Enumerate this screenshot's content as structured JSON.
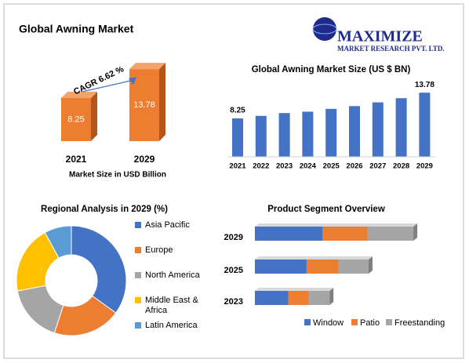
{
  "header": {
    "title": "Global Awning Market",
    "logo_name": "MAXIMIZE",
    "logo_tagline": "MARKET RESEARCH PVT. LTD."
  },
  "chart_data": [
    {
      "type": "bar3d",
      "categories": [
        "2021",
        "2029"
      ],
      "values": [
        8.25,
        13.78
      ],
      "color": "#ed7d31",
      "annotation": "CAGR 6.62 %",
      "xlabel": "Market Size in USD Billion",
      "ylim": [
        0,
        15
      ]
    },
    {
      "type": "bar",
      "title": "Global Awning  Market Size (US $ BN)",
      "categories": [
        "2021",
        "2022",
        "2023",
        "2024",
        "2025",
        "2026",
        "2027",
        "2028",
        "2029"
      ],
      "values": [
        8.25,
        8.8,
        9.4,
        9.7,
        10.3,
        10.9,
        11.7,
        12.6,
        13.78
      ],
      "color": "#4472c4",
      "ylim": [
        0,
        15
      ]
    },
    {
      "type": "donut",
      "title": "Regional Analysis in 2029 (%)",
      "categories": [
        "Asia Pacific",
        "Europe",
        "North America",
        "Middle East & Africa",
        "Latin America"
      ],
      "values": [
        35,
        20,
        17,
        20,
        8
      ],
      "colors": [
        "#4472c4",
        "#ed7d31",
        "#a5a5a5",
        "#ffc000",
        "#5b9bd5"
      ]
    },
    {
      "type": "stacked-hbar",
      "title": "Product Segment Overview",
      "categories": [
        "2029",
        "2025",
        "2023"
      ],
      "series": [
        {
          "name": "Window",
          "color": "#4472c4",
          "values": [
            5.9,
            4.5,
            2.9
          ]
        },
        {
          "name": "Patio",
          "color": "#ed7d31",
          "values": [
            3.9,
            2.8,
            1.8
          ]
        },
        {
          "name": "Freestanding",
          "color": "#a5a5a5",
          "values": [
            4.0,
            2.6,
            1.8
          ]
        }
      ],
      "xlim": [
        0,
        14
      ]
    }
  ]
}
